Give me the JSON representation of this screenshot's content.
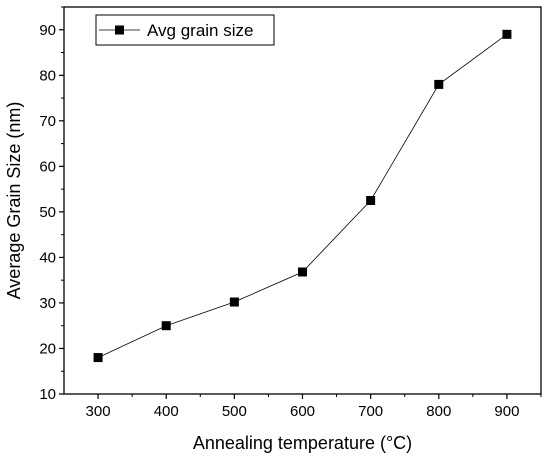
{
  "chart_data": {
    "type": "line",
    "title": "",
    "xlabel": "Annealing temperature (°C)",
    "ylabel": "Average Grain Size (nm)",
    "xlim": [
      250,
      950
    ],
    "ylim": [
      10,
      95
    ],
    "x_ticks": [
      "300",
      "400",
      "500",
      "600",
      "700",
      "800",
      "900"
    ],
    "y_ticks": [
      "10",
      "20",
      "30",
      "40",
      "50",
      "60",
      "70",
      "80",
      "90"
    ],
    "grid": false,
    "legend_position": "top-left",
    "series": [
      {
        "name": "Avg grain size",
        "marker": "square",
        "color": "#000000",
        "x": [
          300,
          400,
          500,
          600,
          700,
          800,
          900
        ],
        "y": [
          18,
          25,
          30.2,
          36.8,
          52.5,
          78,
          89
        ]
      }
    ]
  }
}
